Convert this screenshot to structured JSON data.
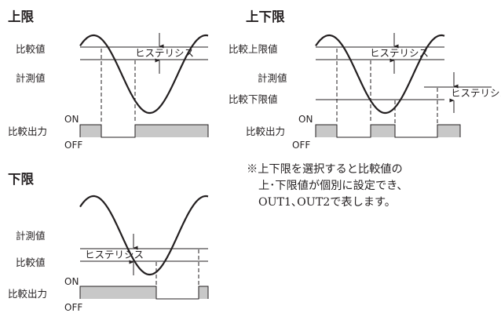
{
  "colors": {
    "ink": "#231f20",
    "output_on_fill": "#c8c8c8"
  },
  "panels": {
    "upper": {
      "title": "上限",
      "compare_label": "比較値",
      "measured_label": "計測値",
      "hysteresis_label": "ヒステリシス",
      "output_label": "比較出力",
      "on_label": "ON",
      "off_label": "OFF"
    },
    "upper_lower": {
      "title": "上下限",
      "compare_upper_label": "比較上限値",
      "measured_label": "計測値",
      "compare_lower_label": "比較下限値",
      "hysteresis_upper_label": "ヒステリシス",
      "hysteresis_lower_label": "ヒステリシス",
      "output_label": "比較出力",
      "on_label": "ON",
      "off_label": "OFF"
    },
    "lower": {
      "title": "下限",
      "measured_label": "計測値",
      "compare_label": "比較値",
      "hysteresis_label": "ヒステリシス",
      "output_label": "比較出力",
      "on_label": "ON",
      "off_label": "OFF"
    }
  },
  "note": {
    "line1": "※上下限を選択すると比較値の",
    "line2": "上･下限値が個別に設定でき、",
    "line3": "OUT1､OUT2で表します。"
  }
}
